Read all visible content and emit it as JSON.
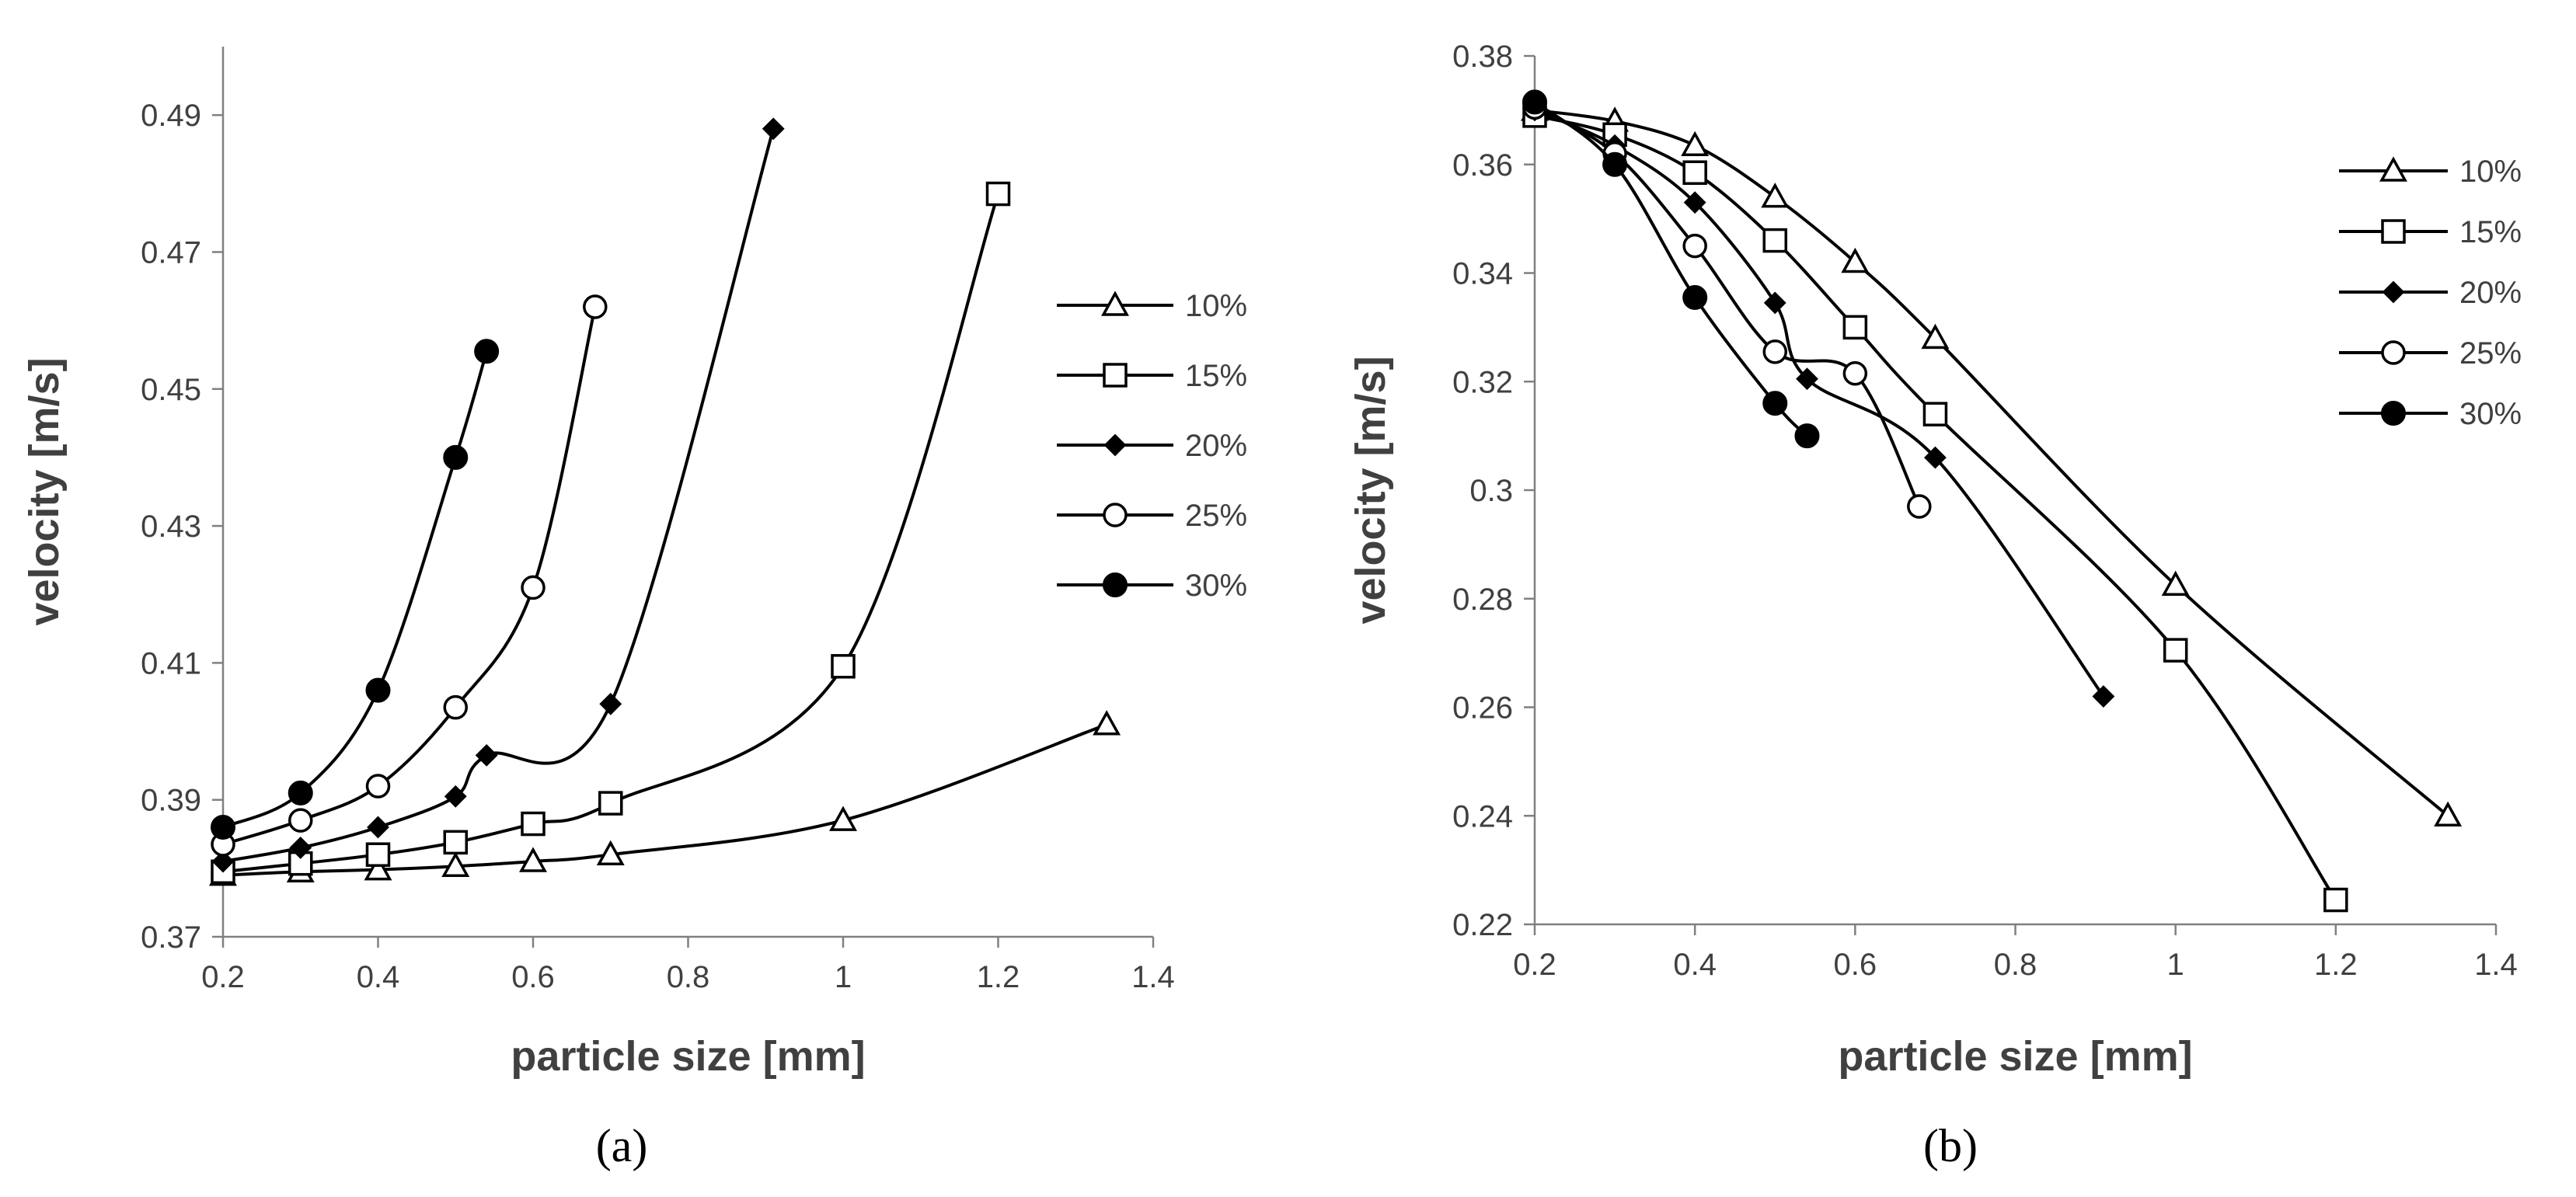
{
  "figure": {
    "panel_labels": [
      "(a)",
      "(b)"
    ]
  },
  "colors": {
    "series_line": "#000000",
    "axis": "#808080",
    "text": "#404040"
  },
  "chart_data": [
    {
      "type": "line",
      "panel": "a",
      "xlabel": "particle size [mm]",
      "ylabel": "velocity [m/s]",
      "xlim": [
        0.2,
        1.4
      ],
      "ylim": [
        0.37,
        0.5
      ],
      "x_ticks": [
        0.2,
        0.4,
        0.6,
        0.8,
        1,
        1.2,
        1.4
      ],
      "x_tick_labels": [
        "0.2",
        "0.4",
        "0.6",
        "0.8",
        "1",
        "1.2",
        "1.4"
      ],
      "y_ticks": [
        0.37,
        0.39,
        0.41,
        0.43,
        0.45,
        0.47,
        0.49
      ],
      "y_tick_labels": [
        "0.37",
        "0.39",
        "0.41",
        "0.43",
        "0.45",
        "0.47",
        "0.49"
      ],
      "grid": false,
      "legend_position": "right",
      "series": [
        {
          "name": "10%",
          "marker": "triangle-open",
          "x": [
            0.2,
            0.3,
            0.4,
            0.5,
            0.6,
            0.7,
            1.0,
            1.34
          ],
          "y": [
            0.379,
            0.3795,
            0.3798,
            0.3803,
            0.381,
            0.382,
            0.387,
            0.401
          ]
        },
        {
          "name": "15%",
          "marker": "square-open",
          "x": [
            0.2,
            0.3,
            0.4,
            0.5,
            0.6,
            0.7,
            1.0,
            1.2
          ],
          "y": [
            0.3795,
            0.3807,
            0.382,
            0.3838,
            0.3865,
            0.3895,
            0.4095,
            0.4785
          ]
        },
        {
          "name": "20%",
          "marker": "diamond-filled",
          "x": [
            0.2,
            0.3,
            0.4,
            0.5,
            0.54,
            0.7,
            0.91
          ],
          "y": [
            0.381,
            0.383,
            0.386,
            0.3905,
            0.3965,
            0.404,
            0.488
          ]
        },
        {
          "name": "25%",
          "marker": "circle-open",
          "x": [
            0.2,
            0.3,
            0.4,
            0.5,
            0.6,
            0.68
          ],
          "y": [
            0.3835,
            0.387,
            0.392,
            0.4035,
            0.421,
            0.462
          ]
        },
        {
          "name": "30%",
          "marker": "circle-filled",
          "x": [
            0.2,
            0.3,
            0.4,
            0.5,
            0.54
          ],
          "y": [
            0.386,
            0.391,
            0.406,
            0.44,
            0.4555
          ]
        }
      ]
    },
    {
      "type": "line",
      "panel": "b",
      "xlabel": "particle size [mm]",
      "ylabel": "velocity [m/s]",
      "xlim": [
        0.2,
        1.4
      ],
      "ylim": [
        0.22,
        0.38
      ],
      "x_ticks": [
        0.2,
        0.4,
        0.6,
        0.8,
        1,
        1.2,
        1.4
      ],
      "x_tick_labels": [
        "0.2",
        "0.4",
        "0.6",
        "0.8",
        "1",
        "1.2",
        "1.4"
      ],
      "y_ticks": [
        0.22,
        0.24,
        0.26,
        0.28,
        0.3,
        0.32,
        0.34,
        0.36,
        0.38
      ],
      "y_tick_labels": [
        "0.22",
        "0.24",
        "0.26",
        "0.28",
        "0.3",
        "0.32",
        "0.34",
        "0.36",
        "0.38"
      ],
      "grid": false,
      "legend_position": "top-right",
      "series": [
        {
          "name": "10%",
          "marker": "triangle-open",
          "x": [
            0.2,
            0.3,
            0.4,
            0.5,
            0.6,
            0.7,
            1.0,
            1.34
          ],
          "y": [
            0.37,
            0.368,
            0.3635,
            0.354,
            0.342,
            0.328,
            0.2825,
            0.24
          ]
        },
        {
          "name": "15%",
          "marker": "square-open",
          "x": [
            0.2,
            0.3,
            0.4,
            0.5,
            0.6,
            0.7,
            1.0,
            1.2
          ],
          "y": [
            0.369,
            0.3655,
            0.3585,
            0.346,
            0.33,
            0.314,
            0.2705,
            0.2245
          ]
        },
        {
          "name": "20%",
          "marker": "diamond-filled",
          "x": [
            0.2,
            0.3,
            0.4,
            0.5,
            0.54,
            0.7,
            0.91
          ],
          "y": [
            0.37,
            0.3635,
            0.353,
            0.3345,
            0.3205,
            0.306,
            0.262
          ]
        },
        {
          "name": "25%",
          "marker": "circle-open",
          "x": [
            0.2,
            0.3,
            0.4,
            0.5,
            0.6,
            0.68
          ],
          "y": [
            0.3705,
            0.362,
            0.345,
            0.3255,
            0.3215,
            0.297
          ]
        },
        {
          "name": "30%",
          "marker": "circle-filled",
          "x": [
            0.2,
            0.3,
            0.4,
            0.5,
            0.54
          ],
          "y": [
            0.3715,
            0.36,
            0.3355,
            0.316,
            0.31
          ]
        }
      ]
    }
  ]
}
